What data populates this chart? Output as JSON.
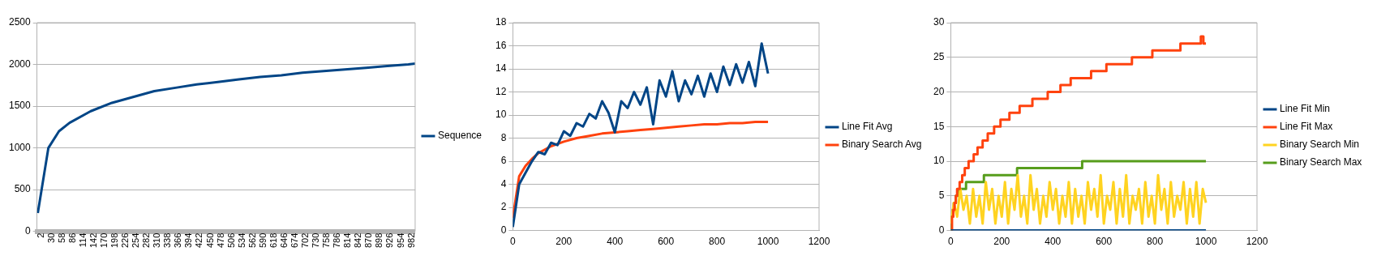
{
  "chart_data": [
    {
      "type": "line",
      "x": [
        2,
        30,
        58,
        86,
        142,
        198,
        254,
        310,
        366,
        422,
        478,
        534,
        590,
        646,
        702,
        758,
        814,
        870,
        926,
        982,
        1000
      ],
      "series": [
        {
          "name": "Sequence",
          "color": "#004586",
          "values": [
            220,
            1000,
            1200,
            1300,
            1440,
            1540,
            1610,
            1680,
            1720,
            1760,
            1790,
            1820,
            1850,
            1870,
            1900,
            1920,
            1940,
            1960,
            1980,
            2000,
            2010
          ]
        }
      ],
      "xlim": [
        0,
        1000
      ],
      "xticks": [
        2,
        30,
        58,
        86,
        114,
        142,
        170,
        198,
        226,
        254,
        282,
        310,
        338,
        366,
        394,
        422,
        450,
        478,
        506,
        534,
        562,
        590,
        618,
        646,
        674,
        702,
        730,
        758,
        786,
        814,
        842,
        870,
        898,
        926,
        954,
        982
      ],
      "ylim": [
        0,
        2500
      ],
      "yticks": [
        0,
        500,
        1000,
        1500,
        2000,
        2500
      ],
      "grid": "y",
      "legend": "right"
    },
    {
      "type": "line",
      "series": [
        {
          "name": "Line Fit Avg",
          "color": "#004586",
          "x": [
            0,
            25,
            50,
            75,
            100,
            125,
            150,
            175,
            200,
            225,
            250,
            275,
            300,
            325,
            350,
            375,
            400,
            425,
            450,
            475,
            500,
            525,
            550,
            575,
            600,
            625,
            650,
            675,
            700,
            725,
            750,
            775,
            800,
            825,
            850,
            875,
            900,
            925,
            950,
            975,
            1000
          ],
          "values": [
            0.3,
            4,
            5,
            6,
            6.8,
            6.6,
            7.6,
            7.4,
            8.6,
            8.2,
            9.3,
            9,
            10.1,
            9.7,
            11.2,
            10.2,
            8.5,
            11.2,
            10.6,
            12,
            10.9,
            12.4,
            9.2,
            13,
            11.6,
            13.8,
            11.2,
            13,
            11.8,
            13.4,
            11.6,
            13.6,
            12,
            14.2,
            12.6,
            14.4,
            12.8,
            14.6,
            12.5,
            16.2,
            13.6
          ]
        },
        {
          "name": "Binary Search Avg",
          "color": "#ff420e",
          "x": [
            0,
            25,
            50,
            75,
            100,
            150,
            200,
            250,
            300,
            350,
            400,
            450,
            500,
            550,
            600,
            650,
            700,
            750,
            800,
            850,
            900,
            950,
            1000
          ],
          "values": [
            1.1,
            4.7,
            5.6,
            6.2,
            6.7,
            7.3,
            7.7,
            8,
            8.2,
            8.4,
            8.5,
            8.6,
            8.7,
            8.8,
            8.9,
            9,
            9.1,
            9.2,
            9.2,
            9.3,
            9.3,
            9.4,
            9.4
          ]
        }
      ],
      "xlim": [
        0,
        1200
      ],
      "xticks": [
        0,
        200,
        400,
        600,
        800,
        1000,
        1200
      ],
      "ylim": [
        0,
        18
      ],
      "yticks": [
        0,
        2,
        4,
        6,
        8,
        10,
        12,
        14,
        16,
        18
      ],
      "grid": "y",
      "legend": "right"
    },
    {
      "type": "line",
      "series": [
        {
          "name": "Line Fit Min",
          "color": "#004586",
          "x": [
            0,
            1000
          ],
          "values": [
            0,
            0
          ]
        },
        {
          "name": "Line Fit Max",
          "color": "#ff420e",
          "type": "step",
          "x": [
            0,
            5,
            10,
            15,
            20,
            25,
            35,
            45,
            55,
            70,
            90,
            105,
            125,
            145,
            170,
            195,
            230,
            270,
            320,
            380,
            430,
            470,
            550,
            610,
            710,
            790,
            900,
            980,
            990,
            1000
          ],
          "values": [
            0,
            2,
            3,
            4,
            5,
            6,
            7,
            8,
            9,
            10,
            11,
            12,
            13,
            14,
            15,
            16,
            17,
            18,
            19,
            20,
            21,
            22,
            23,
            24,
            25,
            26,
            27,
            28,
            27,
            27
          ]
        },
        {
          "name": "Binary Search Min",
          "color": "#ffd320",
          "x": [
            0,
            12.5,
            25,
            37.5,
            50,
            62.5,
            75,
            87.5,
            100,
            112.5,
            125,
            137.5,
            150,
            162.5,
            175,
            187.5,
            200,
            212.5,
            225,
            237.5,
            250,
            262.5,
            275,
            287.5,
            300,
            312.5,
            325,
            337.5,
            350,
            362.5,
            375,
            387.5,
            400,
            412.5,
            425,
            437.5,
            450,
            462.5,
            475,
            487.5,
            500,
            512.5,
            525,
            537.5,
            550,
            562.5,
            575,
            587.5,
            600,
            612.5,
            625,
            637.5,
            650,
            662.5,
            675,
            687.5,
            700,
            712.5,
            725,
            737.5,
            750,
            762.5,
            775,
            787.5,
            800,
            812.5,
            825,
            837.5,
            850,
            862.5,
            875,
            887.5,
            900,
            912.5,
            925,
            937.5,
            950,
            962.5,
            975,
            987.5,
            1000
          ],
          "values": [
            1,
            4,
            2,
            6,
            3,
            5,
            1,
            6,
            2,
            5,
            1,
            7,
            3,
            6,
            1,
            5,
            2,
            7,
            1,
            6,
            3,
            8,
            2,
            5,
            1,
            8,
            3,
            6,
            1,
            5,
            2,
            7,
            3,
            6,
            1,
            5,
            2,
            7,
            1,
            6,
            2,
            5,
            1,
            7,
            3,
            6,
            2,
            8,
            1,
            5,
            3,
            7,
            1,
            6,
            2,
            8,
            1,
            5,
            3,
            6,
            1,
            7,
            2,
            5,
            1,
            8,
            3,
            6,
            1,
            7,
            2,
            5,
            3,
            7,
            1,
            6,
            2,
            7,
            1,
            6,
            4
          ]
        },
        {
          "name": "Binary Search Max",
          "color": "#579d1c",
          "type": "step",
          "x": [
            0,
            3,
            8,
            12,
            20,
            30,
            60,
            130,
            260,
            515,
            1000
          ],
          "values": [
            0,
            2,
            3,
            4,
            5,
            6,
            7,
            8,
            9,
            10,
            10
          ]
        }
      ],
      "xlim": [
        0,
        1200
      ],
      "xticks": [
        0,
        200,
        400,
        600,
        800,
        1000,
        1200
      ],
      "ylim": [
        0,
        30
      ],
      "yticks": [
        0,
        5,
        10,
        15,
        20,
        25,
        30
      ],
      "grid": "y",
      "legend": "right"
    }
  ]
}
